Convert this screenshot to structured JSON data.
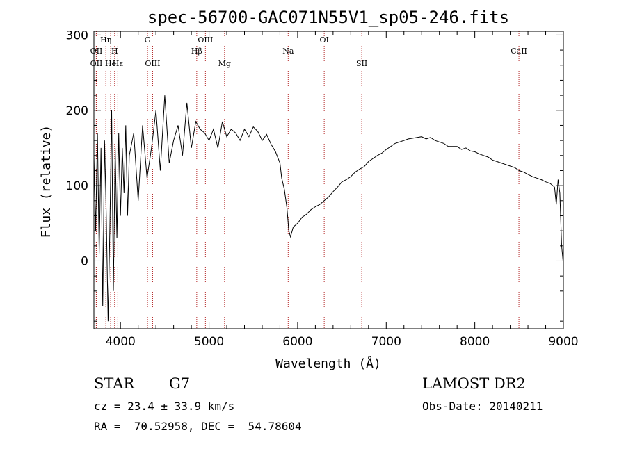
{
  "chart_data": {
    "type": "line",
    "title": "spec-56700-GAC071N55V1_sp05-246.fits",
    "xlabel": "Wavelength (Å)",
    "ylabel": "Flux (relative)",
    "xlim": [
      3700,
      9000
    ],
    "ylim": [
      -90,
      305
    ],
    "x_ticks": [
      4000,
      5000,
      6000,
      7000,
      8000,
      9000
    ],
    "y_ticks": [
      0,
      100,
      200,
      300
    ],
    "grid": false,
    "series": [
      {
        "x": [
          3700,
          3720,
          3740,
          3760,
          3780,
          3800,
          3820,
          3840,
          3860,
          3880,
          3900,
          3920,
          3940,
          3960,
          3980,
          4000,
          4020,
          4040,
          4060,
          4080,
          4100,
          4150,
          4200,
          4250,
          4300,
          4350,
          4400,
          4450,
          4500,
          4550,
          4600,
          4650,
          4700,
          4750,
          4800,
          4850,
          4900,
          4950,
          5000,
          5050,
          5100,
          5150,
          5200,
          5250,
          5300,
          5350,
          5400,
          5450,
          5500,
          5550,
          5600,
          5650,
          5700,
          5750,
          5800,
          5820,
          5850,
          5880,
          5900,
          5920,
          5950,
          6000,
          6050,
          6100,
          6150,
          6200,
          6250,
          6300,
          6350,
          6400,
          6450,
          6500,
          6550,
          6600,
          6650,
          6700,
          6750,
          6800,
          6850,
          6900,
          6950,
          7000,
          7050,
          7100,
          7150,
          7200,
          7250,
          7300,
          7350,
          7400,
          7450,
          7500,
          7550,
          7600,
          7650,
          7700,
          7750,
          7800,
          7850,
          7900,
          7950,
          8000,
          8050,
          8100,
          8150,
          8200,
          8250,
          8300,
          8350,
          8400,
          8450,
          8500,
          8550,
          8600,
          8650,
          8700,
          8750,
          8800,
          8850,
          8900,
          8920,
          8940,
          8960,
          8980,
          9000
        ],
        "y": [
          140,
          40,
          170,
          10,
          150,
          -60,
          160,
          60,
          -80,
          40,
          200,
          -40,
          150,
          30,
          170,
          60,
          150,
          90,
          180,
          60,
          140,
          170,
          80,
          180,
          110,
          150,
          200,
          120,
          220,
          130,
          160,
          180,
          140,
          210,
          150,
          185,
          175,
          170,
          160,
          175,
          150,
          185,
          165,
          175,
          170,
          160,
          175,
          165,
          178,
          172,
          160,
          168,
          155,
          145,
          130,
          110,
          95,
          70,
          40,
          32,
          45,
          50,
          58,
          62,
          68,
          72,
          75,
          80,
          85,
          92,
          98,
          105,
          108,
          112,
          118,
          122,
          125,
          132,
          136,
          140,
          143,
          148,
          152,
          156,
          158,
          160,
          162,
          163,
          164,
          165,
          162,
          164,
          160,
          158,
          156,
          152,
          152,
          152,
          148,
          150,
          146,
          145,
          142,
          140,
          138,
          134,
          132,
          130,
          128,
          126,
          124,
          120,
          118,
          115,
          112,
          110,
          108,
          105,
          103,
          98,
          75,
          108,
          90,
          20,
          -5
        ]
      }
    ],
    "line_labels": [
      {
        "name": "OII",
        "x": 3727,
        "row": 2
      },
      {
        "name": "OII",
        "x": 3727,
        "row": 3
      },
      {
        "name": "Hη",
        "x": 3835,
        "row": 1
      },
      {
        "name": "He",
        "x": 3889,
        "row": 3
      },
      {
        "name": "H",
        "x": 3934,
        "row": 2
      },
      {
        "name": "Hε",
        "x": 3970,
        "row": 3
      },
      {
        "name": "G",
        "x": 4305,
        "row": 1
      },
      {
        "name": "OIII",
        "x": 4363,
        "row": 3
      },
      {
        "name": "Hβ",
        "x": 4861,
        "row": 2
      },
      {
        "name": "OIII",
        "x": 4959,
        "row": 1
      },
      {
        "name": "Mg",
        "x": 5175,
        "row": 3
      },
      {
        "name": "Na",
        "x": 5893,
        "row": 2
      },
      {
        "name": "OI",
        "x": 6300,
        "row": 1
      },
      {
        "name": "SII",
        "x": 6724,
        "row": 3
      },
      {
        "name": "CaII",
        "x": 8498,
        "row": 2
      }
    ]
  },
  "info": {
    "class": "STAR",
    "subclass": "G7",
    "survey": "LAMOST DR2",
    "cz": "cz = 23.4 ± 33.9 km/s",
    "obs_date": "Obs-Date: 20140211",
    "coords": "RA =  70.52958, DEC =  54.78604"
  }
}
